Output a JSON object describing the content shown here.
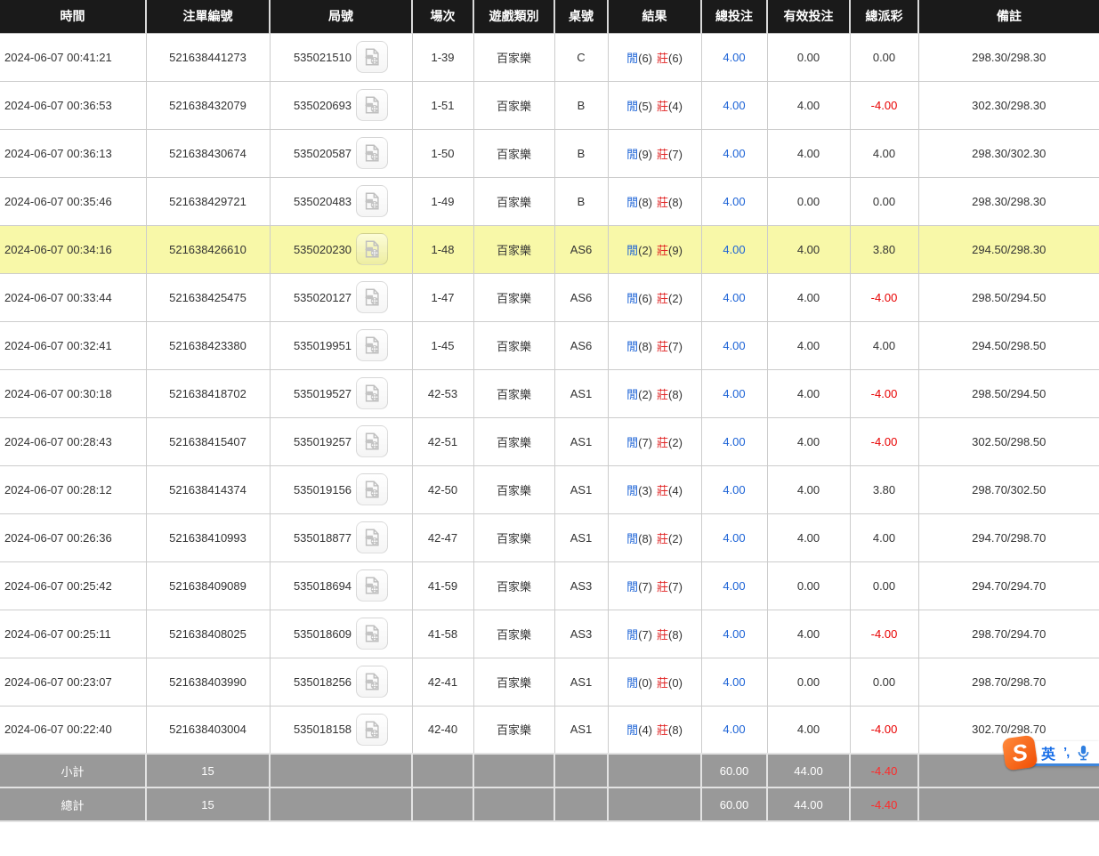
{
  "colors": {
    "header_bg": "#1a1a1a",
    "row_highlight": "#f8f8a8",
    "player_blue": "#1b62d6",
    "banker_red": "#e02424",
    "negative_red": "#e80000",
    "footer_bg": "#999999",
    "ime_orange": "#f04e04",
    "ime_blue": "#1a6fe8"
  },
  "table": {
    "headers": [
      "時間",
      "注單編號",
      "局號",
      "場次",
      "遊戲類別",
      "桌號",
      "結果",
      "總投注",
      "有效投注",
      "總派彩",
      "備註"
    ],
    "result_labels": {
      "player": "閒",
      "banker": "莊"
    },
    "video_icon": "video-replay-icon",
    "rows": [
      {
        "time": "2024-06-07 00:41:21",
        "bet_id": "521638441273",
        "round": "535021510",
        "session": "1-39",
        "game": "百家樂",
        "table": "C",
        "player": "6",
        "banker": "6",
        "total_bet": "4.00",
        "valid_bet": "0.00",
        "total_payout": "0.00",
        "remark": "298.30/298.30",
        "highlight": false
      },
      {
        "time": "2024-06-07 00:36:53",
        "bet_id": "521638432079",
        "round": "535020693",
        "session": "1-51",
        "game": "百家樂",
        "table": "B",
        "player": "5",
        "banker": "4",
        "total_bet": "4.00",
        "valid_bet": "4.00",
        "total_payout": "-4.00",
        "remark": "302.30/298.30",
        "highlight": false
      },
      {
        "time": "2024-06-07 00:36:13",
        "bet_id": "521638430674",
        "round": "535020587",
        "session": "1-50",
        "game": "百家樂",
        "table": "B",
        "player": "9",
        "banker": "7",
        "total_bet": "4.00",
        "valid_bet": "4.00",
        "total_payout": "4.00",
        "remark": "298.30/302.30",
        "highlight": false
      },
      {
        "time": "2024-06-07 00:35:46",
        "bet_id": "521638429721",
        "round": "535020483",
        "session": "1-49",
        "game": "百家樂",
        "table": "B",
        "player": "8",
        "banker": "8",
        "total_bet": "4.00",
        "valid_bet": "0.00",
        "total_payout": "0.00",
        "remark": "298.30/298.30",
        "highlight": false
      },
      {
        "time": "2024-06-07 00:34:16",
        "bet_id": "521638426610",
        "round": "535020230",
        "session": "1-48",
        "game": "百家樂",
        "table": "AS6",
        "player": "2",
        "banker": "9",
        "total_bet": "4.00",
        "valid_bet": "4.00",
        "total_payout": "3.80",
        "remark": "294.50/298.30",
        "highlight": true
      },
      {
        "time": "2024-06-07 00:33:44",
        "bet_id": "521638425475",
        "round": "535020127",
        "session": "1-47",
        "game": "百家樂",
        "table": "AS6",
        "player": "6",
        "banker": "2",
        "total_bet": "4.00",
        "valid_bet": "4.00",
        "total_payout": "-4.00",
        "remark": "298.50/294.50",
        "highlight": false
      },
      {
        "time": "2024-06-07 00:32:41",
        "bet_id": "521638423380",
        "round": "535019951",
        "session": "1-45",
        "game": "百家樂",
        "table": "AS6",
        "player": "8",
        "banker": "7",
        "total_bet": "4.00",
        "valid_bet": "4.00",
        "total_payout": "4.00",
        "remark": "294.50/298.50",
        "highlight": false
      },
      {
        "time": "2024-06-07 00:30:18",
        "bet_id": "521638418702",
        "round": "535019527",
        "session": "42-53",
        "game": "百家樂",
        "table": "AS1",
        "player": "2",
        "banker": "8",
        "total_bet": "4.00",
        "valid_bet": "4.00",
        "total_payout": "-4.00",
        "remark": "298.50/294.50",
        "highlight": false
      },
      {
        "time": "2024-06-07 00:28:43",
        "bet_id": "521638415407",
        "round": "535019257",
        "session": "42-51",
        "game": "百家樂",
        "table": "AS1",
        "player": "7",
        "banker": "2",
        "total_bet": "4.00",
        "valid_bet": "4.00",
        "total_payout": "-4.00",
        "remark": "302.50/298.50",
        "highlight": false
      },
      {
        "time": "2024-06-07 00:28:12",
        "bet_id": "521638414374",
        "round": "535019156",
        "session": "42-50",
        "game": "百家樂",
        "table": "AS1",
        "player": "3",
        "banker": "4",
        "total_bet": "4.00",
        "valid_bet": "4.00",
        "total_payout": "3.80",
        "remark": "298.70/302.50",
        "highlight": false
      },
      {
        "time": "2024-06-07 00:26:36",
        "bet_id": "521638410993",
        "round": "535018877",
        "session": "42-47",
        "game": "百家樂",
        "table": "AS1",
        "player": "8",
        "banker": "2",
        "total_bet": "4.00",
        "valid_bet": "4.00",
        "total_payout": "4.00",
        "remark": "294.70/298.70",
        "highlight": false
      },
      {
        "time": "2024-06-07 00:25:42",
        "bet_id": "521638409089",
        "round": "535018694",
        "session": "41-59",
        "game": "百家樂",
        "table": "AS3",
        "player": "7",
        "banker": "7",
        "total_bet": "4.00",
        "valid_bet": "0.00",
        "total_payout": "0.00",
        "remark": "294.70/294.70",
        "highlight": false
      },
      {
        "time": "2024-06-07 00:25:11",
        "bet_id": "521638408025",
        "round": "535018609",
        "session": "41-58",
        "game": "百家樂",
        "table": "AS3",
        "player": "7",
        "banker": "8",
        "total_bet": "4.00",
        "valid_bet": "4.00",
        "total_payout": "-4.00",
        "remark": "298.70/294.70",
        "highlight": false
      },
      {
        "time": "2024-06-07 00:23:07",
        "bet_id": "521638403990",
        "round": "535018256",
        "session": "42-41",
        "game": "百家樂",
        "table": "AS1",
        "player": "0",
        "banker": "0",
        "total_bet": "4.00",
        "valid_bet": "0.00",
        "total_payout": "0.00",
        "remark": "298.70/298.70",
        "highlight": false
      },
      {
        "time": "2024-06-07 00:22:40",
        "bet_id": "521638403004",
        "round": "535018158",
        "session": "42-40",
        "game": "百家樂",
        "table": "AS1",
        "player": "4",
        "banker": "8",
        "total_bet": "4.00",
        "valid_bet": "4.00",
        "total_payout": "-4.00",
        "remark": "302.70/298.70",
        "highlight": false
      }
    ],
    "footer": [
      {
        "label": "小計",
        "count": "15",
        "total_bet": "60.00",
        "valid_bet": "44.00",
        "total_payout": "-4.40"
      },
      {
        "label": "總計",
        "count": "15",
        "total_bet": "60.00",
        "valid_bet": "44.00",
        "total_payout": "-4.40"
      }
    ]
  },
  "ime_toolbar": {
    "logo": "S",
    "mode_label": "英",
    "punctuation": "’,",
    "mic_icon": "microphone-icon"
  }
}
